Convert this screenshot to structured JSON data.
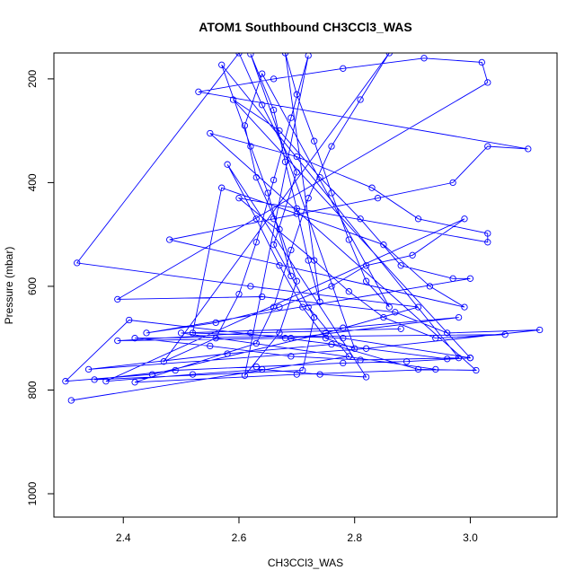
{
  "chart_data": {
    "type": "line",
    "title": "ATOM1 Southbound CH3CCl3_WAS",
    "xlabel": "CH3CCl3_WAS",
    "ylabel": "Pressure (mbar)",
    "xlim": [
      2.28,
      3.15
    ],
    "ylim": [
      1045,
      150
    ],
    "y_inverted": true,
    "x_ticks": [
      2.4,
      2.6,
      2.8,
      3.0
    ],
    "x_tick_labels": [
      "2.4",
      "2.6",
      "2.8",
      "3.0"
    ],
    "y_ticks": [
      200,
      400,
      600,
      800,
      1000
    ],
    "y_tick_labels": [
      "200",
      "400",
      "600",
      "800",
      "1000"
    ],
    "grid": false,
    "legend": "none",
    "colors": {
      "series": "#0000ff",
      "axes": "#000000",
      "background": "#ffffff"
    },
    "marker": "open-circle",
    "series": [
      {
        "points": [
          [
            2.31,
            820
          ],
          [
            2.79,
            735
          ],
          [
            2.72,
            640
          ],
          [
            2.66,
            520
          ],
          [
            2.7,
            380
          ],
          [
            2.64,
            250
          ],
          [
            2.6,
            150
          ],
          [
            2.32,
            555
          ],
          [
            2.62,
            600
          ],
          [
            2.91,
            640
          ],
          [
            2.75,
            690
          ],
          [
            2.45,
            770
          ],
          [
            2.3,
            783
          ],
          [
            2.41,
            665
          ],
          [
            2.68,
            700
          ],
          [
            2.96,
            740
          ],
          [
            3.0,
            738
          ],
          [
            2.78,
            700
          ],
          [
            2.52,
            690
          ],
          [
            2.57,
            410
          ],
          [
            2.7,
            460
          ],
          [
            2.85,
            520
          ],
          [
            2.93,
            600
          ],
          [
            2.99,
            640
          ],
          [
            2.48,
            510
          ],
          [
            2.66,
            470
          ],
          [
            2.84,
            430
          ],
          [
            2.97,
            400
          ],
          [
            3.03,
            330
          ],
          [
            3.1,
            335
          ],
          [
            2.53,
            225
          ],
          [
            2.66,
            200
          ],
          [
            2.78,
            180
          ],
          [
            2.92,
            160
          ],
          [
            3.02,
            168
          ],
          [
            3.03,
            207
          ],
          [
            2.39,
            625
          ],
          [
            2.64,
            620
          ],
          [
            2.87,
            650
          ],
          [
            2.96,
            690
          ],
          [
            3.12,
            684
          ],
          [
            2.82,
            720
          ],
          [
            2.34,
            760
          ],
          [
            2.58,
            730
          ],
          [
            2.76,
            712
          ],
          [
            2.91,
            760
          ],
          [
            3.01,
            762
          ],
          [
            2.55,
            305
          ],
          [
            2.7,
            350
          ],
          [
            2.83,
            410
          ],
          [
            2.91,
            470
          ],
          [
            3.03,
            498
          ],
          [
            3.03,
            515
          ],
          [
            2.6,
            430
          ],
          [
            2.73,
            550
          ],
          [
            2.79,
            610
          ],
          [
            2.85,
            660
          ],
          [
            2.94,
            700
          ],
          [
            3.06,
            693
          ],
          [
            2.42,
            700
          ],
          [
            2.55,
            715
          ],
          [
            2.69,
            735
          ],
          [
            2.81,
            742
          ],
          [
            2.98,
            738
          ],
          [
            2.57,
            173
          ],
          [
            2.62,
            330
          ],
          [
            2.65,
            420
          ],
          [
            2.69,
            580
          ],
          [
            2.73,
            660
          ],
          [
            2.71,
            762
          ],
          [
            2.35,
            780
          ],
          [
            2.49,
            762
          ],
          [
            2.63,
            755
          ],
          [
            2.78,
            748
          ],
          [
            2.89,
            745
          ],
          [
            3.0,
            738
          ],
          [
            2.59,
            240
          ],
          [
            2.67,
            300
          ],
          [
            2.74,
            390
          ],
          [
            2.81,
            470
          ],
          [
            2.88,
            560
          ],
          [
            2.97,
            585
          ],
          [
            3.0,
            585
          ],
          [
            2.44,
            690
          ],
          [
            2.56,
            670
          ],
          [
            2.67,
            640
          ],
          [
            2.76,
            600
          ],
          [
            2.82,
            560
          ],
          [
            2.9,
            540
          ],
          [
            2.99,
            470
          ],
          [
            2.37,
            783
          ],
          [
            2.52,
            770
          ],
          [
            2.64,
            760
          ],
          [
            2.74,
            770
          ],
          [
            2.82,
            775
          ],
          [
            2.58,
            365
          ],
          [
            2.63,
            470
          ],
          [
            2.67,
            560
          ],
          [
            2.71,
            640
          ],
          [
            2.75,
            700
          ],
          [
            2.8,
            720
          ],
          [
            2.62,
            152
          ],
          [
            2.66,
            260
          ],
          [
            2.68,
            360
          ],
          [
            2.7,
            450
          ],
          [
            2.72,
            550
          ],
          [
            2.74,
            630
          ],
          [
            2.68,
            150
          ],
          [
            2.7,
            230
          ],
          [
            2.73,
            320
          ],
          [
            2.76,
            420
          ],
          [
            2.79,
            510
          ],
          [
            2.82,
            590
          ],
          [
            2.86,
            640
          ],
          [
            2.64,
            190
          ],
          [
            2.61,
            290
          ],
          [
            2.63,
            390
          ],
          [
            2.67,
            490
          ],
          [
            2.7,
            590
          ],
          [
            2.67,
            690
          ],
          [
            2.61,
            772
          ],
          [
            2.72,
            155
          ],
          [
            2.69,
            275
          ],
          [
            2.66,
            395
          ],
          [
            2.63,
            515
          ],
          [
            2.6,
            615
          ],
          [
            2.56,
            700
          ],
          [
            2.47,
            745
          ],
          [
            2.86,
            150
          ],
          [
            2.81,
            240
          ],
          [
            2.76,
            330
          ],
          [
            2.72,
            430
          ],
          [
            2.69,
            530
          ],
          [
            2.66,
            640
          ],
          [
            2.63,
            710
          ],
          [
            2.42,
            785
          ],
          [
            2.7,
            770
          ],
          [
            2.94,
            760
          ],
          [
            2.5,
            690
          ],
          [
            2.78,
            680
          ],
          [
            2.98,
            660
          ],
          [
            2.69,
            700
          ],
          [
            2.39,
            705
          ],
          [
            2.62,
            690
          ],
          [
            2.88,
            682
          ]
        ]
      }
    ]
  }
}
